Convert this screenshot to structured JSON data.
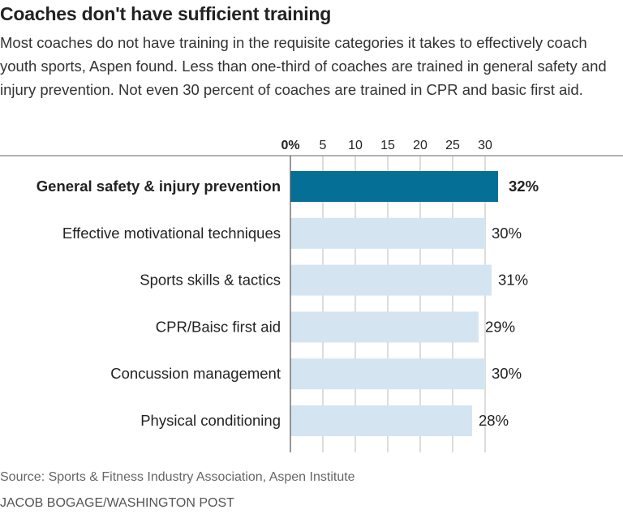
{
  "header": {
    "title": "Coaches don't have sufficient training",
    "subtitle": "Most coaches do not have training in the requisite categories it takes to effectively coach youth sports, Aspen found. Less than one-third of coaches are trained in general safety and injury prevention. Not even 30 percent of coaches are trained in CPR and basic first aid."
  },
  "footer": {
    "source": "Source: Sports & Fitness Industry Association, Aspen Institute",
    "credit": "JACOB BOGAGE/WASHINGTON POST"
  },
  "chart_data": {
    "type": "bar",
    "orientation": "horizontal",
    "categories": [
      "General safety & injury prevention",
      "Effective motivational techniques",
      "Sports skills & tactics",
      "CPR/Baisc first aid",
      "Concussion management",
      "Physical conditioning"
    ],
    "values": [
      32,
      30,
      31,
      29,
      30,
      28
    ],
    "value_labels": [
      "32%",
      "30%",
      "31%",
      "29%",
      "30%",
      "28%"
    ],
    "highlight_index": 0,
    "xlim": [
      0,
      30
    ],
    "ticks": [
      0,
      5,
      10,
      15,
      20,
      25,
      30
    ],
    "tick_labels": [
      "0%",
      "5",
      "10",
      "15",
      "20",
      "25",
      "30"
    ],
    "grid": true,
    "colors": {
      "highlight": "#056f96",
      "default": "#d4e5f1",
      "grid": "#bbbbbb",
      "axis": "#666666"
    }
  }
}
